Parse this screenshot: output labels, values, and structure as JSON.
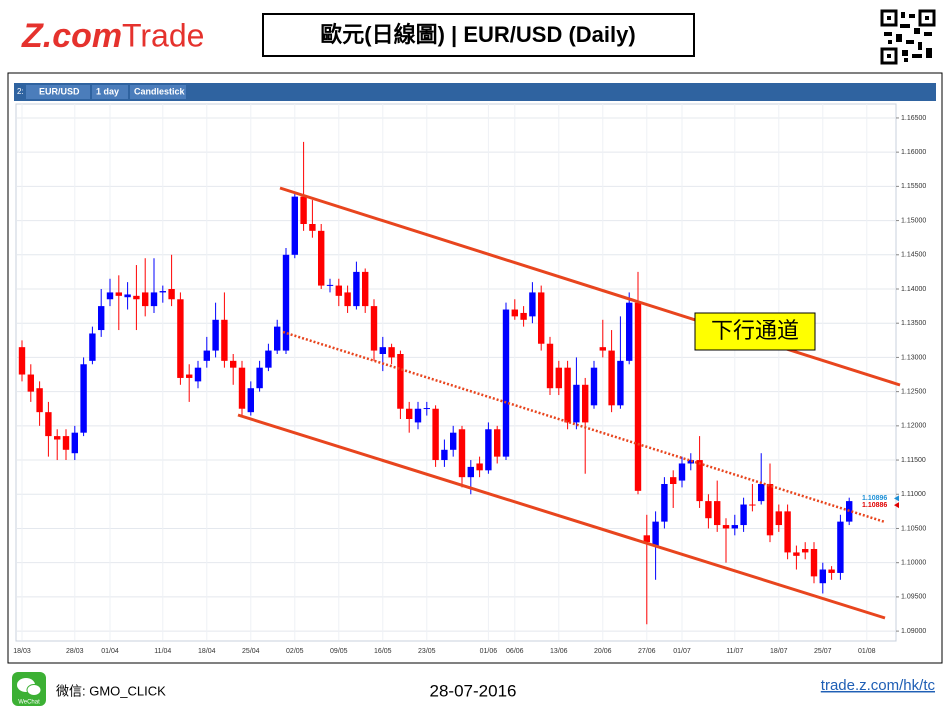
{
  "header": {
    "logo_z": "Z.com",
    "logo_trade": "Trade",
    "title": "歐元(日線圖) | EUR/USD (Daily)"
  },
  "footer": {
    "wechat_icon": "WeChat",
    "wechat": "微信: GMO_CLICK",
    "date": "28-07-2016",
    "url": "trade.z.com/hk/tc"
  },
  "chart_data": {
    "type": "candlestick",
    "toolbar": {
      "index": "2:",
      "symbol": "EUR/USD",
      "interval": "1 day",
      "style": "Candlestick"
    },
    "annotation": "下行通道",
    "up_color": "#0000ff",
    "down_color": "#ff0000",
    "grid": true,
    "categories": [
      "18/03",
      null,
      null,
      null,
      null,
      null,
      "28/03",
      null,
      null,
      null,
      "01/04",
      null,
      null,
      null,
      null,
      null,
      "11/04",
      null,
      null,
      null,
      null,
      "18/04",
      null,
      null,
      null,
      null,
      "25/04",
      null,
      null,
      null,
      null,
      "02/05",
      null,
      null,
      null,
      null,
      "09/05",
      null,
      null,
      null,
      null,
      "16/05",
      null,
      null,
      null,
      null,
      "23/05",
      null,
      null,
      null,
      null,
      null,
      null,
      "01/06",
      null,
      null,
      "06/06",
      null,
      null,
      null,
      null,
      "13/06",
      null,
      null,
      null,
      null,
      "20/06",
      null,
      null,
      null,
      null,
      "27/06",
      null,
      null,
      null,
      "01/07",
      null,
      null,
      null,
      null,
      null,
      "11/07",
      null,
      null,
      null,
      null,
      "18/07",
      null,
      null,
      null,
      null,
      "25/07",
      null,
      null,
      null,
      null,
      "01/08"
    ],
    "open": [
      1.1315,
      1.1275,
      1.1255,
      1.122,
      1.1185,
      1.1185,
      1.116,
      1.119,
      1.1295,
      1.134,
      1.1385,
      1.1395,
      1.1388,
      1.139,
      1.1395,
      1.1375,
      1.1395,
      1.14,
      1.1385,
      1.1275,
      1.1265,
      1.1295,
      1.131,
      1.1355,
      1.1295,
      1.1285,
      1.122,
      1.1255,
      1.1285,
      1.131,
      1.131,
      1.145,
      1.1535,
      1.1495,
      1.1485,
      1.1405,
      1.1405,
      1.1395,
      1.1375,
      1.1425,
      1.1375,
      1.1305,
      1.1315,
      1.1305,
      1.1225,
      1.1205,
      1.1225,
      1.1225,
      1.115,
      1.1165,
      1.1195,
      1.1125,
      1.1145,
      1.1135,
      1.1195,
      1.1155,
      1.137,
      1.1365,
      1.136,
      1.1395,
      1.132,
      1.1285,
      1.1285,
      1.1205,
      1.126,
      1.123,
      1.1315,
      1.131,
      1.123,
      1.1295,
      1.138,
      1.104,
      1.1025,
      1.106,
      1.1125,
      1.112,
      1.1145,
      1.115,
      1.109,
      1.109,
      1.1055,
      1.105,
      1.1055,
      1.1085,
      1.109,
      1.1115,
      1.1075,
      1.1075,
      1.1015,
      1.102,
      1.102,
      1.097,
      1.099,
      1.0985,
      1.106,
      null,
      null
    ],
    "high": [
      1.1325,
      1.129,
      1.1265,
      1.1235,
      1.1195,
      1.1195,
      1.12,
      1.13,
      1.1345,
      1.14,
      1.1415,
      1.142,
      1.141,
      1.1435,
      1.1445,
      1.1445,
      1.1405,
      1.145,
      1.1395,
      1.129,
      1.1295,
      1.133,
      1.138,
      1.1395,
      1.1305,
      1.1295,
      1.1265,
      1.1295,
      1.132,
      1.1355,
      1.146,
      1.154,
      1.1615,
      1.153,
      1.1495,
      1.1415,
      1.1415,
      1.1405,
      1.144,
      1.143,
      1.1385,
      1.133,
      1.132,
      1.131,
      1.1235,
      1.1235,
      1.1235,
      1.123,
      1.118,
      1.12,
      1.12,
      1.115,
      1.1155,
      1.1205,
      1.12,
      1.138,
      1.1385,
      1.1375,
      1.141,
      1.1405,
      1.133,
      1.1295,
      1.1295,
      1.13,
      1.127,
      1.1295,
      1.1355,
      1.134,
      1.136,
      1.1395,
      1.1425,
      1.107,
      1.1075,
      1.1125,
      1.1135,
      1.1155,
      1.116,
      1.1185,
      1.11,
      1.112,
      1.1065,
      1.107,
      1.1095,
      1.1115,
      1.116,
      1.1145,
      1.1085,
      1.1085,
      1.1025,
      1.103,
      1.103,
      1.1,
      1.0995,
      1.107,
      1.1095,
      null,
      null
    ],
    "low": [
      1.1265,
      1.1235,
      1.12,
      1.1155,
      1.115,
      1.115,
      1.115,
      1.1185,
      1.129,
      1.133,
      1.1375,
      1.134,
      1.137,
      1.134,
      1.136,
      1.1365,
      1.138,
      1.1375,
      1.126,
      1.1235,
      1.1255,
      1.1285,
      1.13,
      1.1285,
      1.126,
      1.1215,
      1.1215,
      1.125,
      1.128,
      1.1305,
      1.1305,
      1.1445,
      1.1485,
      1.1475,
      1.14,
      1.1395,
      1.1375,
      1.1365,
      1.137,
      1.1365,
      1.1295,
      1.128,
      1.129,
      1.121,
      1.119,
      1.1195,
      1.1215,
      1.114,
      1.114,
      1.1155,
      1.111,
      1.11,
      1.1125,
      1.113,
      1.1145,
      1.115,
      1.1355,
      1.1345,
      1.135,
      1.131,
      1.1245,
      1.1245,
      1.1195,
      1.1195,
      1.113,
      1.1225,
      1.13,
      1.122,
      1.1225,
      1.129,
      1.11,
      1.091,
      1.0975,
      1.105,
      1.108,
      1.111,
      1.1135,
      1.108,
      1.105,
      1.1045,
      1.1,
      1.104,
      1.1045,
      1.1075,
      1.1085,
      1.103,
      1.1045,
      1.1005,
      1.099,
      1.1005,
      1.097,
      1.0955,
      1.0975,
      1.0975,
      1.1055,
      null,
      null
    ],
    "close": [
      1.1275,
      1.125,
      1.122,
      1.1185,
      1.118,
      1.1165,
      1.119,
      1.129,
      1.1335,
      1.1375,
      1.1395,
      1.139,
      1.1392,
      1.1385,
      1.1375,
      1.1395,
      1.1397,
      1.1385,
      1.127,
      1.127,
      1.1285,
      1.131,
      1.1355,
      1.1295,
      1.1285,
      1.1225,
      1.1255,
      1.1285,
      1.131,
      1.1345,
      1.145,
      1.1535,
      1.1495,
      1.1485,
      1.1405,
      1.1406,
      1.139,
      1.1375,
      1.1425,
      1.1375,
      1.131,
      1.1315,
      1.13,
      1.1225,
      1.121,
      1.1225,
      1.1226,
      1.115,
      1.1165,
      1.119,
      1.1125,
      1.114,
      1.1135,
      1.1195,
      1.1155,
      1.137,
      1.136,
      1.1355,
      1.1395,
      1.132,
      1.1255,
      1.1255,
      1.1205,
      1.126,
      1.1205,
      1.1285,
      1.131,
      1.123,
      1.1295,
      1.138,
      1.1105,
      1.103,
      1.106,
      1.1115,
      1.1115,
      1.1145,
      1.115,
      1.109,
      1.1065,
      1.1055,
      1.105,
      1.1055,
      1.1085,
      1.1084,
      1.1115,
      1.104,
      1.1055,
      1.1015,
      1.101,
      1.1015,
      1.098,
      1.099,
      1.0985,
      1.106,
      1.109,
      null,
      null
    ],
    "ylim": [
      1.0887,
      1.1666
    ],
    "yticks": [
      {
        "value": 1.09,
        "label": "1.09000"
      },
      {
        "value": 1.095,
        "label": "1.09500"
      },
      {
        "value": 1.1,
        "label": "1.10000"
      },
      {
        "value": 1.105,
        "label": "1.10500"
      },
      {
        "value": 1.11,
        "label": "1.11000"
      },
      {
        "value": 1.115,
        "label": "1.11500"
      },
      {
        "value": 1.12,
        "label": "1.12000"
      },
      {
        "value": 1.125,
        "label": "1.12500"
      },
      {
        "value": 1.13,
        "label": "1.13000"
      },
      {
        "value": 1.135,
        "label": "1.13500"
      },
      {
        "value": 1.14,
        "label": "1.14000"
      },
      {
        "value": 1.145,
        "label": "1.14500"
      },
      {
        "value": 1.15,
        "label": "1.15000"
      },
      {
        "value": 1.155,
        "label": "1.15500"
      },
      {
        "value": 1.16,
        "label": "1.16000"
      },
      {
        "value": 1.165,
        "label": "1.16500"
      }
    ],
    "price_markers": [
      {
        "value": 1.10896,
        "color": "#1e90d6"
      },
      {
        "value": 1.10886,
        "color": "#e00000"
      }
    ]
  }
}
